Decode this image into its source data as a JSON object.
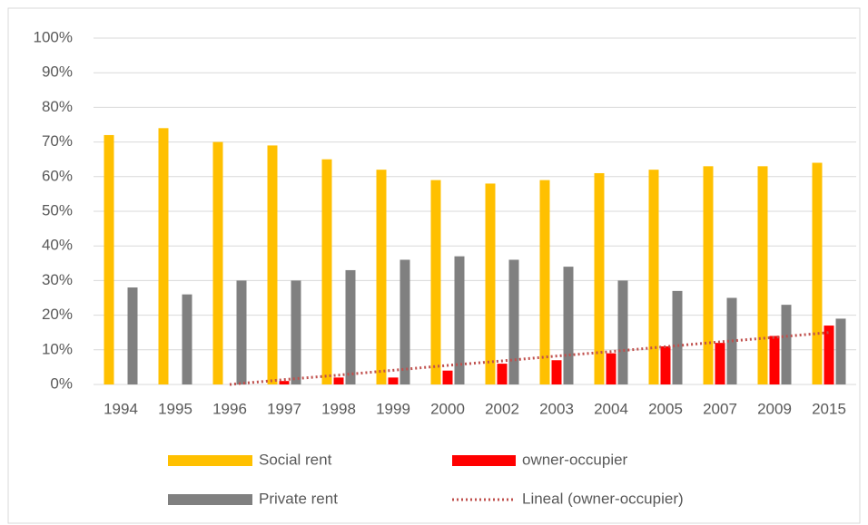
{
  "chart_data": {
    "type": "bar",
    "categories": [
      "1994",
      "1995",
      "1996",
      "1997",
      "1998",
      "1999",
      "2000",
      "2002",
      "2003",
      "2004",
      "2005",
      "2007",
      "2009",
      "2015"
    ],
    "series": [
      {
        "name": "Social rent",
        "color": "#ffc000",
        "values": [
          72,
          74,
          70,
          69,
          65,
          62,
          59,
          58,
          59,
          61,
          62,
          63,
          63,
          64
        ]
      },
      {
        "name": "owner-occupier",
        "color": "#ff0000",
        "values": [
          0,
          0,
          0,
          1,
          2,
          2,
          4,
          6,
          7,
          9,
          11,
          12,
          14,
          17
        ]
      },
      {
        "name": "Private rent",
        "color": "#808080",
        "values": [
          28,
          26,
          30,
          30,
          33,
          36,
          37,
          36,
          34,
          30,
          27,
          25,
          23,
          19
        ]
      },
      {
        "name": "Lineal (owner-occupier)",
        "color": "#c0504d",
        "type": "line",
        "dash": "dotted",
        "values": [
          null,
          null,
          0,
          1.4,
          2.7,
          4.1,
          5.5,
          6.8,
          8.2,
          9.5,
          10.9,
          12.3,
          13.6,
          15
        ]
      }
    ],
    "ylim": [
      0,
      100
    ],
    "yticks": [
      {
        "value": 0,
        "label": "0%"
      },
      {
        "value": 10,
        "label": "10%"
      },
      {
        "value": 20,
        "label": "20%"
      },
      {
        "value": 30,
        "label": "30%"
      },
      {
        "value": 40,
        "label": "40%"
      },
      {
        "value": 50,
        "label": "50%"
      },
      {
        "value": 60,
        "label": "60%"
      },
      {
        "value": 70,
        "label": "70%"
      },
      {
        "value": 80,
        "label": "80%"
      },
      {
        "value": 90,
        "label": "90%"
      },
      {
        "value": 100,
        "label": "100%"
      }
    ],
    "grid": true,
    "legend": "bottom"
  }
}
